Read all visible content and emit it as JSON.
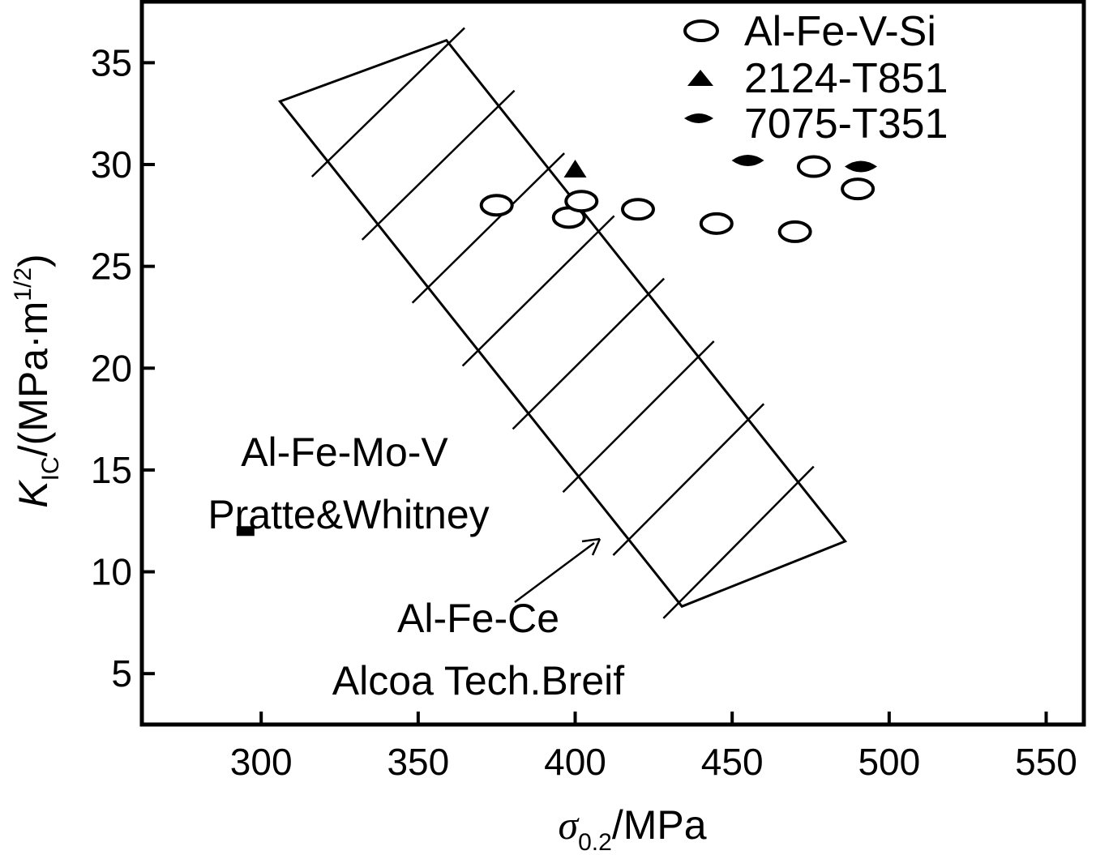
{
  "chart_data": {
    "type": "scatter",
    "title": "",
    "xlabel": {
      "symbol": "σ",
      "sub": "0.2",
      "unit": "/MPa"
    },
    "ylabel": {
      "symbol": "K",
      "sub": "IC",
      "unit": "/(MPa·m",
      "sup": "1/2",
      "close": ")"
    },
    "xlim": [
      262,
      562
    ],
    "ylim": [
      2.5,
      38
    ],
    "x_ticks": [
      300,
      350,
      400,
      450,
      500,
      550
    ],
    "y_ticks": [
      5,
      10,
      15,
      20,
      25,
      30,
      35
    ],
    "grid": false,
    "legend_position": "top-right",
    "series": [
      {
        "name": "Al-Fe-V-Si",
        "marker": "open-ellipse",
        "color": "#000000",
        "points": [
          {
            "x": 375,
            "y": 28.0
          },
          {
            "x": 398,
            "y": 27.4
          },
          {
            "x": 402,
            "y": 28.2
          },
          {
            "x": 420,
            "y": 27.8
          },
          {
            "x": 445,
            "y": 27.1
          },
          {
            "x": 470,
            "y": 26.7
          },
          {
            "x": 476,
            "y": 29.9
          },
          {
            "x": 490,
            "y": 28.8
          }
        ]
      },
      {
        "name": "2124-T851",
        "marker": "filled-triangle",
        "color": "#000000",
        "points": [
          {
            "x": 400,
            "y": 29.8
          }
        ]
      },
      {
        "name": "7075-T351",
        "marker": "filled-diamond",
        "color": "#000000",
        "points": [
          {
            "x": 455,
            "y": 30.2
          },
          {
            "x": 491,
            "y": 29.9
          }
        ]
      }
    ],
    "extra_points": [
      {
        "marker": "filled-rect",
        "x": 295,
        "y": 12.0
      }
    ],
    "band": {
      "label_lines": [
        "Al-Fe-Ce",
        "Alcoa Tech.Breif"
      ],
      "corners": [
        {
          "x": 306,
          "y": 33.1
        },
        {
          "x": 359,
          "y": 36.1
        },
        {
          "x": 486,
          "y": 11.5
        },
        {
          "x": 434,
          "y": 8.3
        }
      ],
      "hatch_lines": 8
    },
    "annotations": [
      {
        "lines": [
          "Al-Fe-Mo-V",
          "Pratte&Whitney"
        ]
      }
    ]
  }
}
